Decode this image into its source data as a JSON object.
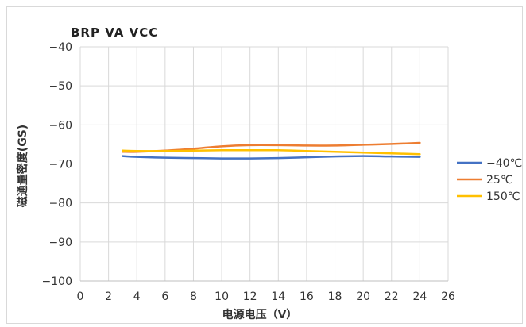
{
  "chart_data": {
    "type": "line",
    "title": "BRP  VA  VCC",
    "xlabel": "电源电压（V）",
    "ylabel": "磁通量密度(GS)",
    "xlim": [
      0,
      26
    ],
    "ylim": [
      -100,
      -40
    ],
    "xticks": [
      0,
      2,
      4,
      6,
      8,
      10,
      12,
      14,
      16,
      18,
      20,
      22,
      24,
      26
    ],
    "xtick_labels": [
      "0",
      "2",
      "4",
      "6",
      "8",
      "10",
      "12",
      "14",
      "16",
      "18",
      "20",
      "22",
      "24",
      "26"
    ],
    "yticks": [
      -40,
      -50,
      -60,
      -70,
      -80,
      -90,
      -100
    ],
    "ytick_labels": [
      "−40",
      "−50",
      "−60",
      "−70",
      "−80",
      "−90",
      "−100"
    ],
    "grid": true,
    "legend_position": "right",
    "x": [
      3,
      4,
      6,
      8,
      10,
      12,
      14,
      16,
      18,
      20,
      22,
      24
    ],
    "series": [
      {
        "name": "−40℃",
        "color": "#4472C4",
        "values": [
          -68.0,
          -68.2,
          -68.4,
          -68.5,
          -68.6,
          -68.6,
          -68.5,
          -68.3,
          -68.1,
          -68.0,
          -68.1,
          -68.2
        ]
      },
      {
        "name": "25℃",
        "color": "#ED7D31",
        "values": [
          -66.9,
          -66.9,
          -66.6,
          -66.1,
          -65.5,
          -65.2,
          -65.2,
          -65.3,
          -65.3,
          -65.1,
          -64.9,
          -64.6
        ]
      },
      {
        "name": "150℃",
        "color": "#FFC000",
        "values": [
          -66.6,
          -66.7,
          -66.7,
          -66.6,
          -66.5,
          -66.5,
          -66.5,
          -66.7,
          -66.9,
          -67.1,
          -67.3,
          -67.5
        ]
      }
    ]
  }
}
